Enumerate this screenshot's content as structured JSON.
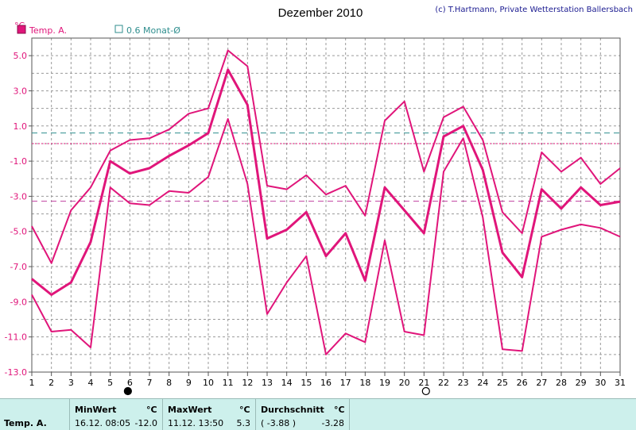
{
  "title": "Dezember 2010",
  "credit": "(c) T.Hartmann, Private Wetterstation Ballersbach",
  "unit": "°C",
  "chart_data": {
    "type": "line",
    "title": "Dezember 2010",
    "ylabel": "°C",
    "xlabel": "",
    "ylim": [
      -13.0,
      6.0
    ],
    "yticks": [
      "5.0",
      "3.0",
      "1.0",
      "-1.0",
      "-3.0",
      "-5.0",
      "-7.0",
      "-9.0",
      "-11.0",
      "-13.0"
    ],
    "x": [
      1,
      2,
      3,
      4,
      5,
      6,
      7,
      8,
      9,
      10,
      11,
      12,
      13,
      14,
      15,
      16,
      17,
      18,
      19,
      20,
      21,
      22,
      23,
      24,
      25,
      26,
      27,
      28,
      29,
      30,
      31
    ],
    "legend": [
      "Temp. A.",
      "0.6 Monat-Ø"
    ],
    "series": [
      {
        "role": "max",
        "color": "#e0157a",
        "values": [
          -4.7,
          -6.8,
          -3.8,
          -2.5,
          -0.4,
          0.2,
          0.3,
          0.8,
          1.7,
          2.0,
          5.3,
          4.4,
          -2.4,
          -2.6,
          -1.8,
          -2.9,
          -2.4,
          -4.1,
          1.3,
          2.4,
          -1.6,
          1.5,
          2.1,
          0.2,
          -3.9,
          -5.1,
          -0.5,
          -1.6,
          -0.8,
          -2.3,
          -1.4
        ]
      },
      {
        "role": "mean",
        "color": "#e0157a",
        "values": [
          -7.7,
          -8.6,
          -7.9,
          -5.6,
          -1.0,
          -1.7,
          -1.4,
          -0.7,
          -0.1,
          0.6,
          4.2,
          2.2,
          -5.4,
          -4.9,
          -3.9,
          -6.4,
          -5.1,
          -7.8,
          -2.5,
          -3.8,
          -5.1,
          0.4,
          1.0,
          -1.5,
          -6.2,
          -7.6,
          -2.6,
          -3.7,
          -2.5,
          -3.5,
          -3.3
        ]
      },
      {
        "role": "min",
        "color": "#e0157a",
        "values": [
          -8.6,
          -10.7,
          -10.6,
          -11.6,
          -2.5,
          -3.4,
          -3.5,
          -2.7,
          -2.8,
          -1.9,
          1.4,
          -2.3,
          -9.7,
          -7.9,
          -6.4,
          -12.0,
          -10.8,
          -11.3,
          -5.5,
          -10.7,
          -10.9,
          -1.6,
          0.3,
          -4.2,
          -11.7,
          -11.8,
          -5.3,
          -4.9,
          -4.6,
          -4.8,
          -5.3
        ]
      }
    ],
    "reference_lines": [
      {
        "value": 0.6,
        "color": "#2f8e8e",
        "style": "dash"
      },
      {
        "value": 0.0,
        "color": "#e0157a",
        "style": "dot"
      },
      {
        "value": -3.28,
        "color": "#c040a0",
        "style": "dash"
      }
    ],
    "moon_phases": [
      {
        "day": 5.9,
        "phase": "full"
      },
      {
        "day": 21.1,
        "phase": "new"
      }
    ],
    "grid": true,
    "legend_position": "top-left"
  },
  "stats": {
    "series_label": "Temp. A.",
    "min": {
      "header": "MinWert",
      "unit": "°C",
      "time": "16.12.  08:05",
      "value": "-12.0"
    },
    "max": {
      "header": "MaxWert",
      "unit": "°C",
      "time": "11.12.  13:50",
      "value": "5.3"
    },
    "avg": {
      "header": "Durchschnitt",
      "unit": "°C",
      "paren": "( -3.88 )",
      "value": "-3.28"
    }
  }
}
